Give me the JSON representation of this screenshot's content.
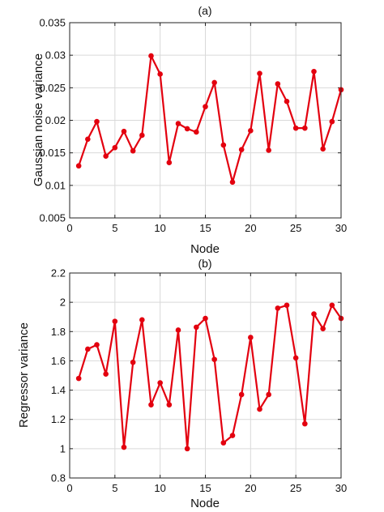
{
  "chart_data": [
    {
      "type": "line",
      "title": "(a)",
      "xlabel": "Node",
      "ylabel": "Gaussian noise variance",
      "xlim": [
        0,
        30
      ],
      "ylim": [
        0.005,
        0.035
      ],
      "xticks": [
        0,
        5,
        10,
        15,
        20,
        25,
        30
      ],
      "xtick_labels": [
        "0",
        "5",
        "10",
        "15",
        "20",
        "25",
        "30"
      ],
      "yticks": [
        0.005,
        0.01,
        0.015,
        0.02,
        0.025,
        0.03,
        0.035
      ],
      "ytick_labels": [
        "0.005",
        "0.01",
        "0.015",
        "0.02",
        "0.025",
        "0.03",
        "0.035"
      ],
      "grid": true,
      "color": "#e3000f",
      "series": [
        {
          "x": [
            1,
            2,
            3,
            4,
            5,
            6,
            7,
            8,
            9,
            10,
            11,
            12,
            13,
            14,
            15,
            16,
            17,
            18,
            19,
            20,
            21,
            22,
            23,
            24,
            25,
            26,
            27,
            28,
            29,
            30
          ],
          "values": [
            0.013,
            0.0171,
            0.0198,
            0.0145,
            0.0158,
            0.0183,
            0.0153,
            0.0177,
            0.0299,
            0.0271,
            0.0135,
            0.0195,
            0.0187,
            0.0182,
            0.0221,
            0.0258,
            0.0162,
            0.0105,
            0.0155,
            0.0184,
            0.0272,
            0.0154,
            0.0256,
            0.0229,
            0.0188,
            0.0188,
            0.0275,
            0.0156,
            0.0198,
            0.0247
          ]
        }
      ]
    },
    {
      "type": "line",
      "title": "(b)",
      "xlabel": "Node",
      "ylabel": "Regressor variance",
      "xlim": [
        0,
        30
      ],
      "ylim": [
        0.8,
        2.2
      ],
      "xticks": [
        0,
        5,
        10,
        15,
        20,
        25,
        30
      ],
      "xtick_labels": [
        "0",
        "5",
        "10",
        "15",
        "20",
        "25",
        "30"
      ],
      "yticks": [
        0.8,
        1,
        1.2,
        1.4,
        1.6,
        1.8,
        2,
        2.2
      ],
      "ytick_labels": [
        "0.8",
        "1",
        "1.2",
        "1.4",
        "1.6",
        "1.8",
        "2",
        "2.2"
      ],
      "grid": true,
      "color": "#e3000f",
      "series": [
        {
          "x": [
            1,
            2,
            3,
            4,
            5,
            6,
            7,
            8,
            9,
            10,
            11,
            12,
            13,
            14,
            15,
            16,
            17,
            18,
            19,
            20,
            21,
            22,
            23,
            24,
            25,
            26,
            27,
            28,
            29,
            30
          ],
          "values": [
            1.48,
            1.68,
            1.71,
            1.51,
            1.87,
            1.01,
            1.59,
            1.88,
            1.3,
            1.45,
            1.3,
            1.81,
            1.0,
            1.83,
            1.89,
            1.61,
            1.04,
            1.09,
            1.37,
            1.76,
            1.27,
            1.37,
            1.96,
            1.98,
            1.62,
            1.17,
            1.92,
            1.82,
            1.98,
            1.89
          ]
        }
      ]
    }
  ]
}
